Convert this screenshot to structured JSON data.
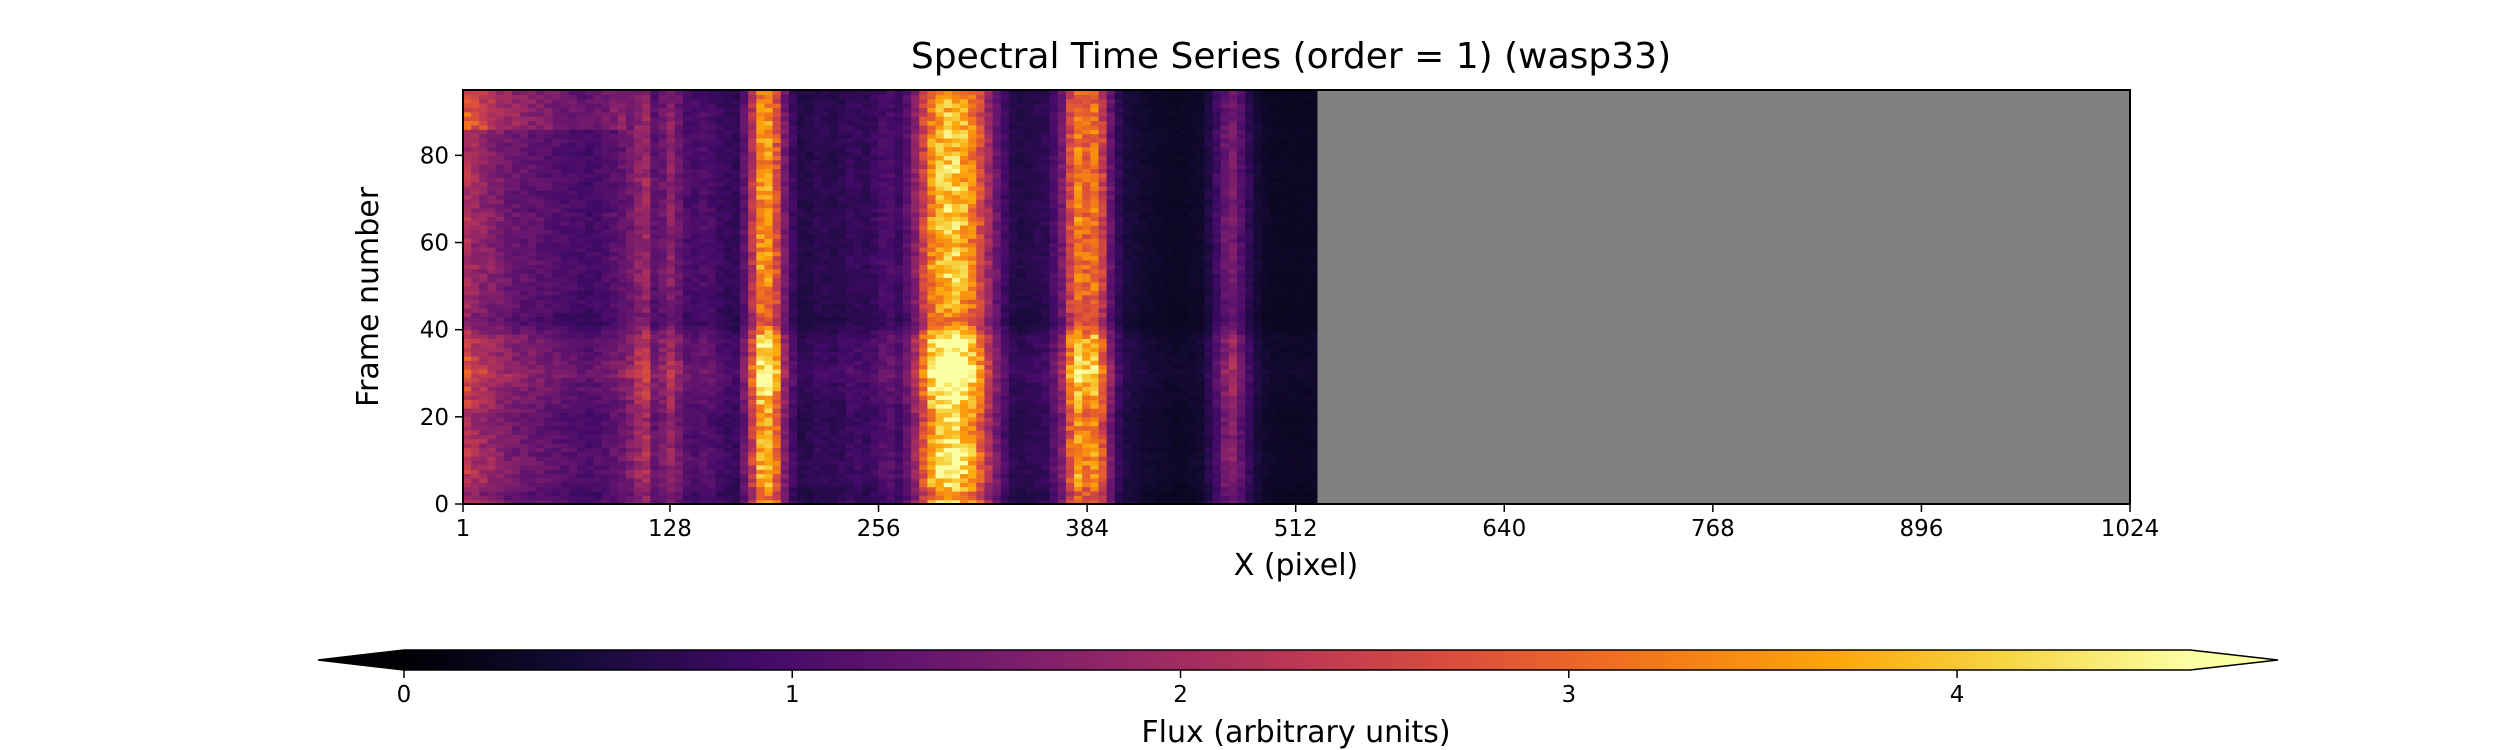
{
  "chart_data": {
    "type": "heatmap",
    "title": "Spectral Time Series (order = 1) (wasp33)",
    "xlabel": "X (pixel)",
    "ylabel": "Frame number",
    "xlim": [
      1,
      1024
    ],
    "ylim": [
      0,
      95
    ],
    "x_ticks": [
      1,
      128,
      256,
      384,
      512,
      640,
      768,
      896,
      1024
    ],
    "y_ticks": [
      0,
      20,
      40,
      60,
      80
    ],
    "data_extent_x": [
      1,
      525
    ],
    "no_data_color": "#808080",
    "colormap": "inferno",
    "grid": false,
    "column_profile": {
      "x": [
        1,
        10,
        20,
        30,
        40,
        50,
        60,
        70,
        80,
        90,
        100,
        108,
        112,
        116,
        120,
        128,
        140,
        150,
        160,
        170,
        175,
        180,
        183,
        186,
        190,
        193,
        196,
        200,
        205,
        210,
        220,
        230,
        240,
        250,
        256,
        262,
        270,
        280,
        288,
        295,
        300,
        305,
        312,
        318,
        325,
        332,
        340,
        350,
        360,
        368,
        372,
        376,
        380,
        384,
        388,
        392,
        398,
        405,
        420,
        440,
        455,
        465,
        470,
        475,
        480,
        490,
        500,
        510,
        525
      ],
      "flux": [
        2.4,
        2.0,
        1.8,
        1.5,
        1.4,
        1.3,
        1.2,
        1.1,
        1.0,
        1.2,
        1.4,
        1.8,
        2.4,
        1.5,
        1.2,
        1.9,
        1.0,
        1.2,
        0.9,
        0.8,
        1.6,
        2.8,
        3.6,
        3.9,
        3.7,
        3.2,
        2.2,
        1.3,
        0.8,
        0.6,
        0.8,
        0.7,
        0.9,
        0.8,
        1.0,
        1.2,
        0.9,
        2.0,
        3.6,
        4.2,
        4.4,
        4.3,
        3.8,
        3.0,
        1.9,
        1.1,
        0.6,
        0.7,
        0.8,
        1.5,
        2.5,
        3.4,
        3.6,
        3.2,
        3.5,
        3.0,
        1.5,
        0.6,
        0.4,
        0.3,
        0.4,
        1.1,
        1.6,
        1.7,
        1.0,
        0.4,
        0.3,
        0.3,
        0.3
      ]
    },
    "frame_profile": {
      "frame": [
        0,
        2,
        5,
        10,
        15,
        20,
        25,
        28,
        30,
        32,
        35,
        38,
        40,
        42,
        45,
        50,
        55,
        60,
        65,
        70,
        75,
        80,
        85,
        90,
        95
      ],
      "factor": [
        1.0,
        0.8,
        1.0,
        1.05,
        1.0,
        0.95,
        1.1,
        1.15,
        1.3,
        1.2,
        1.1,
        1.15,
        0.9,
        0.75,
        0.85,
        0.9,
        0.95,
        0.9,
        0.95,
        0.9,
        0.95,
        0.9,
        0.95,
        0.9,
        0.85
      ]
    },
    "colorbar": {
      "label": "Flux (arbitrary units)",
      "min": 0,
      "max": 4.6,
      "ticks": [
        0,
        1,
        2,
        3,
        4
      ],
      "extend": "both",
      "orientation": "horizontal",
      "placement": "bottom"
    }
  }
}
